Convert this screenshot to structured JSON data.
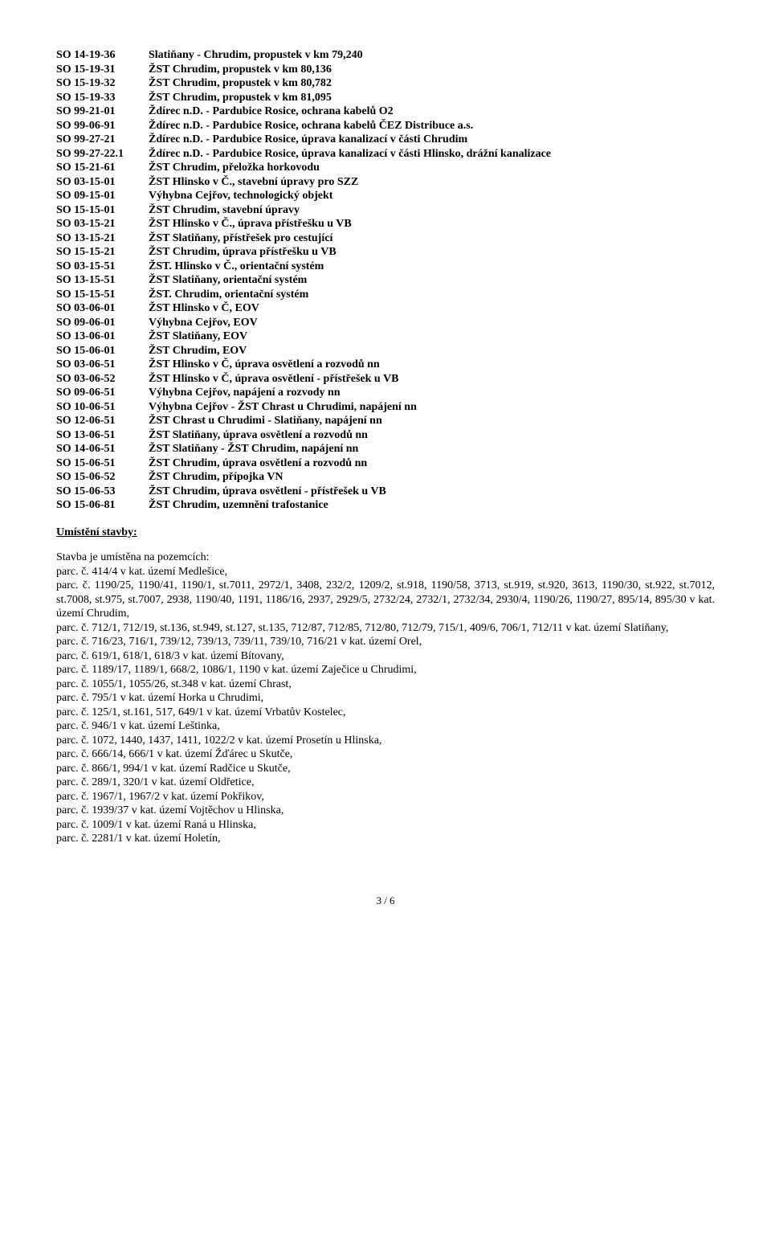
{
  "so_codes": [
    [
      "SO 14-19-36",
      "Slatiňany - Chrudim, propustek v km 79,240"
    ],
    [
      "SO 15-19-31",
      "ŽST Chrudim, propustek v km 80,136"
    ],
    [
      "SO 15-19-32",
      "ŽST Chrudim, propustek v km 80,782"
    ],
    [
      "SO 15-19-33",
      "ŽST Chrudim, propustek v km 81,095"
    ],
    [
      "SO 99-21-01",
      "Ždírec n.D. - Pardubice Rosice, ochrana kabelů O2"
    ],
    [
      "SO 99-06-91",
      "Ždírec n.D. - Pardubice Rosice, ochrana kabelů ČEZ Distribuce a.s."
    ],
    [
      "SO 99-27-21",
      "Ždírec n.D. - Pardubice Rosice, úprava kanalizací v části Chrudim"
    ],
    [
      "SO 99-27-22.1",
      "Ždírec n.D. - Pardubice Rosice, úprava kanalizací v části Hlinsko, drážní kanalizace"
    ],
    [
      "SO 15-21-61",
      "ŽST Chrudim, přeložka horkovodu"
    ],
    [
      "SO 03-15-01",
      "ŽST Hlinsko v Č., stavební úpravy pro SZZ"
    ],
    [
      "SO 09-15-01",
      "Výhybna Cejřov, technologický objekt"
    ],
    [
      "SO 15-15-01",
      "ŽST Chrudim, stavební úpravy"
    ],
    [
      "SO 03-15-21",
      "ŽST Hlinsko v Č., úprava přístřešku u VB"
    ],
    [
      "SO 13-15-21",
      "ŽST Slatiňany, přístřešek pro cestující"
    ],
    [
      "SO 15-15-21",
      "ŽST Chrudim, úprava přístřešku u VB"
    ],
    [
      "SO 03-15-51",
      "ŽST. Hlinsko v Č., orientační systém"
    ],
    [
      "SO 13-15-51",
      "ŽST Slatiňany, orientační systém"
    ],
    [
      "SO 15-15-51",
      "ŽST. Chrudim, orientační systém"
    ],
    [
      "SO 03-06-01",
      "ŽST Hlinsko v Č, EOV"
    ],
    [
      "SO 09-06-01",
      "Výhybna Cejřov, EOV"
    ],
    [
      "SO 13-06-01",
      "ŽST Slatiňany, EOV"
    ],
    [
      "SO 15-06-01",
      "ŽST Chrudim, EOV"
    ],
    [
      "SO 03-06-51",
      "ŽST Hlinsko v Č, úprava osvětlení a rozvodů nn"
    ],
    [
      "SO 03-06-52",
      "ŽST Hlinsko v Č, úprava osvětlení - přístřešek u VB"
    ],
    [
      "SO 09-06-51",
      "Výhybna Cejřov, napájení a rozvody nn"
    ],
    [
      "SO 10-06-51",
      "Výhybna Cejřov - ŽST Chrast u Chrudimi, napájení nn"
    ],
    [
      "SO 12-06-51",
      "ŽST Chrast u Chrudimi - Slatiňany, napájení nn"
    ],
    [
      "SO 13-06-51",
      "ŽST Slatiňany, úprava osvětlení a rozvodů nn"
    ],
    [
      "SO 14-06-51",
      "ŽST Slatiňany - ŽST Chrudim, napájení nn"
    ],
    [
      "SO 15-06-51",
      "ŽST Chrudim, úprava osvětlení a rozvodů nn"
    ],
    [
      "SO 15-06-52",
      "ŽST Chrudim, přípojka VN"
    ],
    [
      "SO 15-06-53",
      "ŽST Chrudim,  úprava osvětlení - přístřešek u VB"
    ],
    [
      "SO 15-06-81",
      "ŽST Chrudim, uzemnění trafostanice"
    ]
  ],
  "section_head": "Umístění stavby:",
  "intro_line": "Stavba je umístěna na pozemcích:",
  "parc_line_1": "parc. č. 414/4  v kat. území Medlešice,",
  "para_text": "parc. č.  1190/25, 1190/41, 1190/1, st.7011, 2972/1, 3408, 232/2, 1209/2, st.918, 1190/58, 3713, st.919, st.920, 3613, 1190/30, st.922, st.7012, st.7008, st.975, st.7007, 2938, 1190/40, 1191, 1186/16, 2937, 2929/5, 2732/24, 2732/1, 2732/34, 2930/4, 1190/26, 1190/27, 895/14, 895/30 v kat. území Chrudim,",
  "line_slatinany": "parc. č. 712/1, 712/19, st.136, st.949, st.127, st.135, 712/87, 712/85, 712/80, 712/79, 715/1, 409/6, 706/1, 712/11 v kat. území Slatiňany,",
  "parc_lines": [
    "parc. č. 716/23, 716/1, 739/12, 739/13, 739/11, 739/10, 716/21 v kat. území Orel,",
    "parc. č. 619/1, 618/1, 618/3 v kat. území Bítovany,",
    "parc. č. 1189/17, 1189/1, 668/2, 1086/1, 1190 v kat. území Zaječice u Chrudimi,",
    "parc. č. 1055/1, 1055/26, st.348 v kat. území Chrast,",
    "parc. č. 795/1 v kat. území Horka u Chrudimi,",
    "parc. č. 125/1, st.161, 517, 649/1 v kat. území Vrbatův Kostelec,",
    "parc. č. 946/1 v kat. území Leštinka,",
    "parc. č. 1072, 1440, 1437, 1411, 1022/2 v kat. území Prosetín u Hlinska,",
    "parc. č. 666/14, 666/1 v kat. území Žďárec u Skutče,",
    "parc. č. 866/1, 994/1 v kat. území Radčice u Skutče,",
    "parc. č. 289/1, 320/1 v kat. území Oldřetice,",
    "parc. č. 1967/1, 1967/2 v kat. území Pokřikov,",
    "parc. č. 1939/37 v kat. území Vojtěchov u Hlinska,",
    "parc. č. 1009/1 v kat. území Raná u Hlinska,",
    "parc. č. 2281/1 v kat. území Holetín,"
  ],
  "page_num": "3 / 6"
}
